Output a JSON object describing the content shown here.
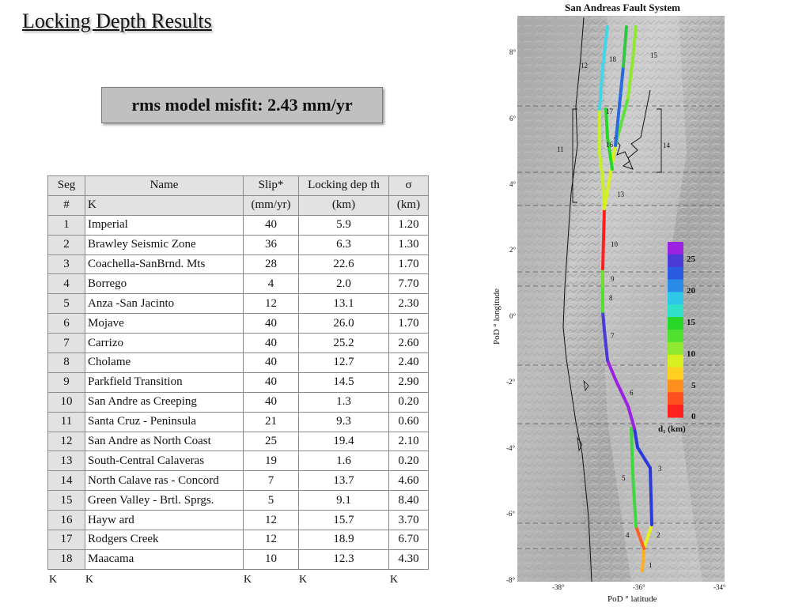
{
  "page": {
    "title": "Locking Depth Results",
    "misfit_text": "rms model misfit:  2.43 mm/yr"
  },
  "table": {
    "headers": [
      "Seg",
      "Name",
      "Slip*",
      "Locking dep th",
      "σ"
    ],
    "units": [
      "#",
      "K",
      "(mm/yr)",
      "(km)",
      "(km)"
    ],
    "rows": [
      {
        "seg": "1",
        "name": "Imperial",
        "slip": "40",
        "depth": "5.9",
        "sigma": "1.20"
      },
      {
        "seg": "2",
        "name": "Brawley Seismic Zone",
        "slip": "36",
        "depth": "6.3",
        "sigma": "1.30"
      },
      {
        "seg": "3",
        "name": "Coachella-SanBrnd. Mts",
        "slip": "28",
        "depth": "22.6",
        "sigma": "1.70"
      },
      {
        "seg": "4",
        "name": "Borrego",
        "slip": "4",
        "depth": "2.0",
        "sigma": "7.70"
      },
      {
        "seg": "5",
        "name": "Anza -San Jacinto",
        "slip": "12",
        "depth": "13.1",
        "sigma": "2.30"
      },
      {
        "seg": "6",
        "name": "Mojave",
        "slip": "40",
        "depth": "26.0",
        "sigma": "1.70"
      },
      {
        "seg": "7",
        "name": "Carrizo",
        "slip": "40",
        "depth": "25.2",
        "sigma": "2.60"
      },
      {
        "seg": "8",
        "name": "Cholame",
        "slip": "40",
        "depth": "12.7",
        "sigma": "2.40"
      },
      {
        "seg": "9",
        "name": "Parkfield Transition",
        "slip": "40",
        "depth": "14.5",
        "sigma": "2.90"
      },
      {
        "seg": "10",
        "name": "San Andre as Creeping",
        "slip": "40",
        "depth": "1.3",
        "sigma": "0.20"
      },
      {
        "seg": "11",
        "name": "Santa Cruz - Peninsula",
        "slip": "21",
        "depth": "9.3",
        "sigma": "0.60"
      },
      {
        "seg": "12",
        "name": "San Andre as North Coast",
        "slip": "25",
        "depth": "19.4",
        "sigma": "2.10"
      },
      {
        "seg": "13",
        "name": "South-Central Calaveras",
        "slip": "19",
        "depth": "1.6",
        "sigma": "0.20"
      },
      {
        "seg": "14",
        "name": "North Calave ras - Concord",
        "slip": "7",
        "depth": "13.7",
        "sigma": "4.60"
      },
      {
        "seg": "15",
        "name": "Green Valley - Brtl. Sprgs.",
        "slip": "5",
        "depth": "9.1",
        "sigma": "8.40"
      },
      {
        "seg": "16",
        "name": "Hayw ard",
        "slip": "12",
        "depth": "15.7",
        "sigma": "3.70"
      },
      {
        "seg": "17",
        "name": "Rodgers Creek",
        "slip": "12",
        "depth": "18.9",
        "sigma": "6.70"
      },
      {
        "seg": "18",
        "name": "Maacama",
        "slip": "10",
        "depth": "12.3",
        "sigma": "4.30"
      }
    ],
    "footer_marks": [
      "K",
      "K",
      "K",
      "K",
      "K"
    ]
  },
  "map": {
    "title": "San Andreas Fault System",
    "ylabel": "PoD ° longitude",
    "xlabel": "PoD ° latitude",
    "yticks": [
      "8°",
      "6°",
      "4°",
      "2°",
      "0°",
      "-2°",
      "-4°",
      "-6°",
      "-8°"
    ],
    "xticks": [
      "-38°",
      "-36°",
      "-34°"
    ],
    "colorbar": {
      "title": "d₁ (km)",
      "tick_labels": [
        "25",
        "20",
        "15",
        "10",
        "5",
        "0"
      ],
      "colors": [
        "#9a22e0",
        "#4a3ad6",
        "#2a5ae0",
        "#2a8ae8",
        "#30c8e8",
        "#30e0c8",
        "#28d828",
        "#50e030",
        "#90e830",
        "#d8f020",
        "#ffd020",
        "#ff9020",
        "#ff5020",
        "#ff2020"
      ]
    },
    "segment_labels": [
      "1",
      "2",
      "3",
      "4",
      "5",
      "6",
      "7",
      "8",
      "9",
      "10",
      "11",
      "12",
      "13",
      "14",
      "15",
      "16",
      "17",
      "18"
    ]
  }
}
